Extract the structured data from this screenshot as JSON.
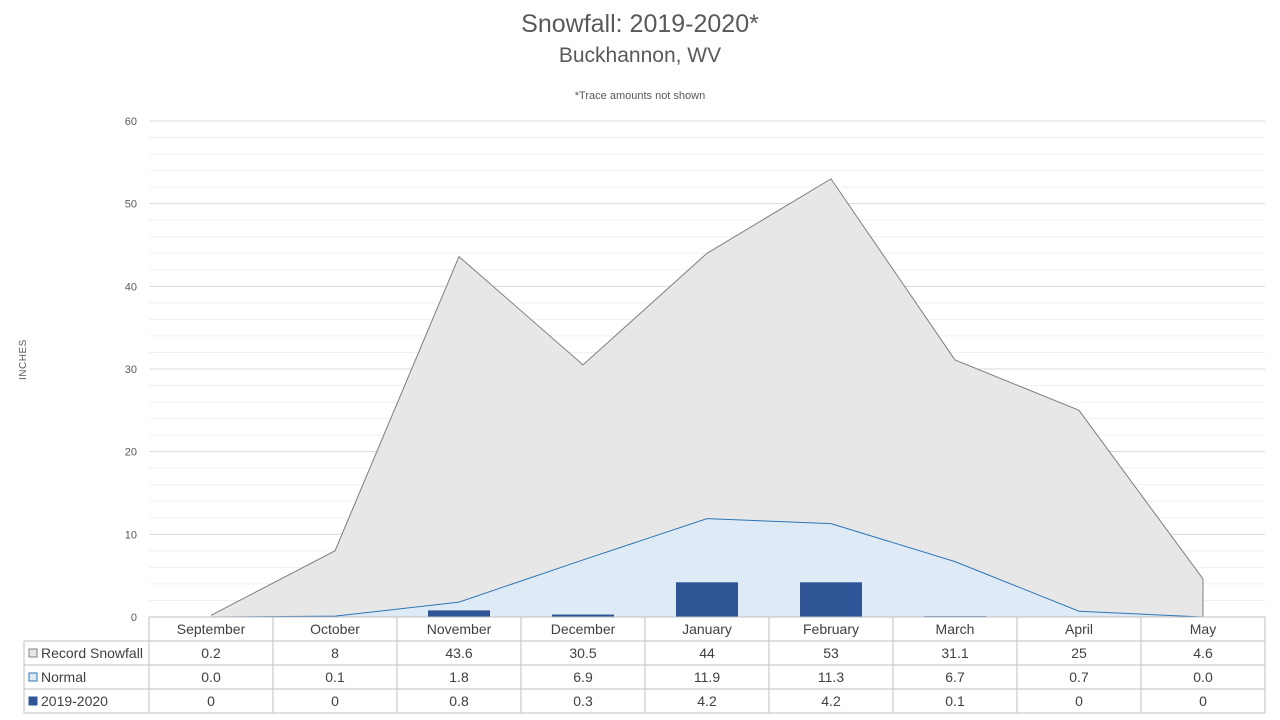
{
  "chart_data": {
    "type": "area",
    "title": "Snowfall: 2019-2020*",
    "subtitle": "Buckhannon, WV",
    "note": "*Trace amounts not shown",
    "ylabel": "INCHES",
    "ylim": [
      0,
      60
    ],
    "yticks": [
      0,
      10,
      20,
      30,
      40,
      50,
      60
    ],
    "grid": true,
    "legend_placement": "data-table-left",
    "categories": [
      "September",
      "October",
      "November",
      "December",
      "January",
      "February",
      "March",
      "April",
      "May"
    ],
    "series": [
      {
        "name": "Record Snowfall",
        "kind": "area",
        "color": "#e7e7e7",
        "line_color": "#7f7f7f",
        "values": [
          0.2,
          8,
          43.6,
          30.5,
          44,
          53,
          31.1,
          25,
          4.6
        ],
        "display": [
          "0.2",
          "8",
          "43.6",
          "30.5",
          "44",
          "53",
          "31.1",
          "25",
          "4.6"
        ]
      },
      {
        "name": "Normal",
        "kind": "area",
        "color": "#deebf7",
        "line_color": "#2e75b6",
        "values": [
          0.0,
          0.1,
          1.8,
          6.9,
          11.9,
          11.3,
          6.7,
          0.7,
          0.0
        ],
        "display": [
          "0.0",
          "0.1",
          "1.8",
          "6.9",
          "11.9",
          "11.3",
          "6.7",
          "0.7",
          "0.0"
        ]
      },
      {
        "name": "2019-2020",
        "kind": "bar",
        "color": "#2f5597",
        "values": [
          0,
          0,
          0.8,
          0.3,
          4.2,
          4.2,
          0.1,
          0,
          0
        ],
        "display": [
          "0",
          "0",
          "0.8",
          "0.3",
          "4.2",
          "4.2",
          "0.1",
          "0",
          "0"
        ]
      }
    ]
  }
}
